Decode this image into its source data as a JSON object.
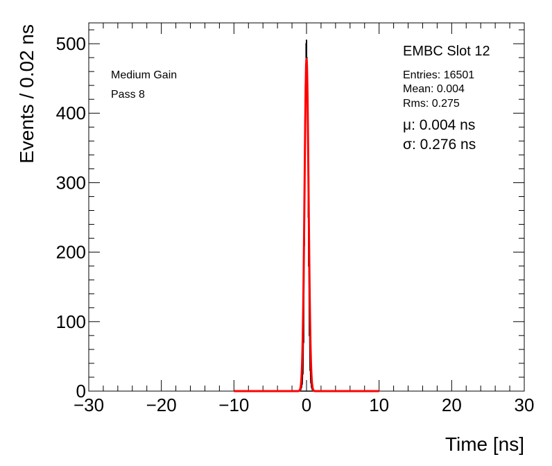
{
  "chart_data": {
    "type": "histogram",
    "xlabel": "Time [ns]",
    "ylabel": "Events / 0.02 ns",
    "xlim": [
      -30,
      30
    ],
    "ylim": [
      0,
      530
    ],
    "x_ticks": [
      -30,
      -20,
      -10,
      0,
      10,
      20,
      30
    ],
    "y_ticks": [
      0,
      100,
      200,
      300,
      400,
      500
    ],
    "grid": false,
    "series": [
      {
        "style": "histogram-step",
        "color": "#000000",
        "x": [
          -0.9,
          -0.8,
          -0.7,
          -0.6,
          -0.5,
          -0.4,
          -0.3,
          -0.25,
          -0.2,
          -0.15,
          -0.1,
          -0.05,
          0.0,
          0.05,
          0.1,
          0.15,
          0.2,
          0.25,
          0.3,
          0.4,
          0.5,
          0.6,
          0.7,
          0.8,
          0.9
        ],
        "values": [
          1,
          2,
          5,
          10,
          25,
          70,
          210,
          300,
          390,
          440,
          470,
          500,
          505,
          480,
          450,
          400,
          330,
          250,
          180,
          80,
          30,
          12,
          5,
          2,
          1
        ]
      },
      {
        "style": "gaussian-fit",
        "color": "#ff0000",
        "mean": 0.004,
        "sigma": 0.276,
        "amplitude": 478,
        "range": [
          -10,
          10
        ]
      }
    ],
    "text": {
      "top_left": [
        "Medium Gain",
        "Pass 8"
      ],
      "title": "EMBC Slot 12",
      "stats": [
        "Entries: 16501",
        "Mean: 0.004",
        "Rms: 0.275"
      ],
      "fit": [
        "μ: 0.004 ns",
        "σ: 0.276 ns"
      ]
    }
  }
}
